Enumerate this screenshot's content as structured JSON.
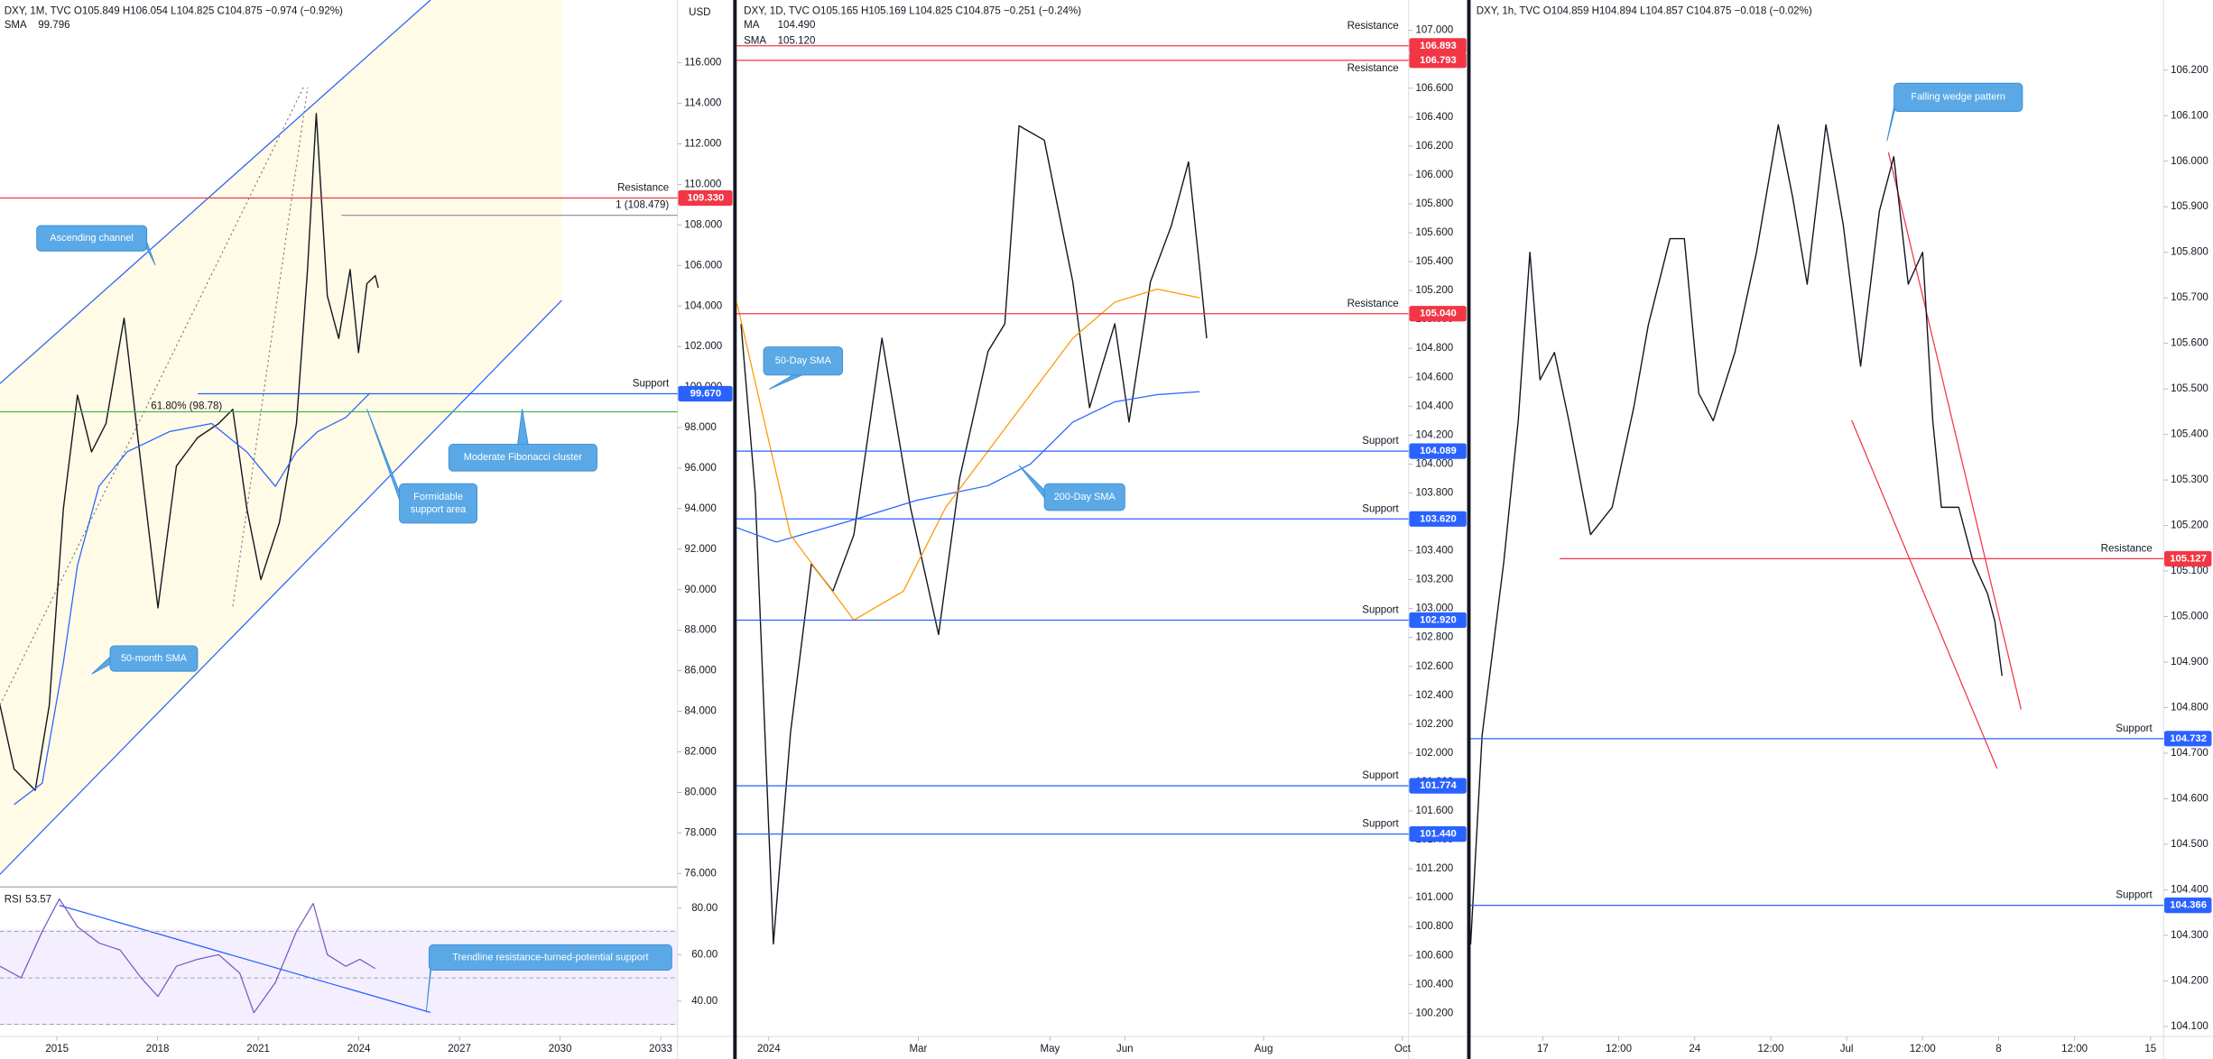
{
  "chart_data": [
    {
      "type": "line",
      "header": "DXY, 1M, TVC  O105.849  H106.054  L104.825  C104.875  −0.974 (−0.92%)",
      "currency": "USD",
      "xlim": [
        2013.3,
        2033.5
      ],
      "xticks": [
        2015,
        2018,
        2021,
        2024,
        2027,
        2030,
        2033
      ],
      "ylim": [
        75.4,
        119.1
      ],
      "yticks": [
        {
          "value": 76,
          "label": "76.000"
        },
        {
          "value": 78,
          "label": "78.000"
        },
        {
          "value": 80,
          "label": "80.000"
        },
        {
          "value": 82,
          "label": "82.000"
        },
        {
          "value": 84,
          "label": "84.000"
        },
        {
          "value": 86,
          "label": "86.000"
        },
        {
          "value": 88,
          "label": "88.000"
        },
        {
          "value": 90,
          "label": "90.000"
        },
        {
          "value": 92,
          "label": "92.000"
        },
        {
          "value": 94,
          "label": "94.000"
        },
        {
          "value": 96,
          "label": "96.000"
        },
        {
          "value": 98,
          "label": "98.000"
        },
        {
          "value": 100,
          "label": "100.000"
        },
        {
          "value": 102,
          "label": "102.000"
        },
        {
          "value": 104,
          "label": "104.000"
        },
        {
          "value": 106,
          "label": "106.000"
        },
        {
          "value": 108,
          "label": "108.000"
        },
        {
          "value": 110,
          "label": "110.000"
        },
        {
          "value": 112,
          "label": "112.000"
        },
        {
          "value": 114,
          "label": "114.000"
        },
        {
          "value": 116,
          "label": "116.000"
        }
      ],
      "series": [
        {
          "color": "#131722",
          "x": [
            2013.3,
            2013.72,
            2014.35,
            2014.77,
            2015.19,
            2015.61,
            2016.03,
            2016.46,
            2017.0,
            2017.51,
            2018.01,
            2018.56,
            2019.19,
            2019.82,
            2020.24,
            2020.66,
            2021.08,
            2021.63,
            2022.14,
            2022.47,
            2022.73,
            2023.06,
            2023.4,
            2023.74,
            2023.99,
            2024.24,
            2024.49,
            2024.58
          ],
          "values": [
            84.3,
            81.15,
            80.1,
            84.3,
            94.0,
            99.6,
            96.8,
            98.2,
            103.4,
            96.1,
            89.1,
            96.1,
            97.5,
            98.2,
            98.9,
            94.0,
            90.5,
            93.3,
            98.2,
            105.8,
            113.5,
            104.5,
            102.4,
            105.8,
            101.7,
            105.1,
            105.5,
            104.9
          ]
        },
        {
          "name": "SMA",
          "last": "99.796",
          "color": "#2962ff",
          "x": [
            2013.72,
            2014.56,
            2015.19,
            2015.61,
            2016.25,
            2017.09,
            2018.35,
            2019.61,
            2020.66,
            2021.51,
            2022.14,
            2022.77,
            2023.61,
            2024.33
          ],
          "values": [
            79.4,
            80.45,
            86.4,
            91.2,
            95.1,
            96.8,
            97.8,
            98.2,
            96.8,
            95.1,
            96.8,
            97.8,
            98.5,
            99.7
          ]
        }
      ],
      "levels": [
        {
          "name": "Resistance",
          "value": 109.33,
          "label": "109.330",
          "color": "#f23645"
        },
        {
          "name": "1 (108.479)",
          "value": 108.479,
          "color": "#9598a1"
        },
        {
          "name": "Support",
          "value": 99.67,
          "label": "99.670",
          "color": "#2962ff"
        },
        {
          "name": "61.80% (98.78)",
          "value": 98.78,
          "color": "#4caf50"
        }
      ],
      "annotations": [
        {
          "lines": [
            "Ascending channel"
          ]
        },
        {
          "lines": [
            "Moderate Fibonacci cluster"
          ]
        },
        {
          "lines": [
            "Formidable",
            "support area"
          ]
        },
        {
          "lines": [
            "50-month SMA"
          ]
        },
        {
          "lines": [
            "Trendline resistance-turned-potential support"
          ]
        }
      ],
      "rsi": {
        "name": "RSI",
        "last": "53.57",
        "color": "#7e57c2",
        "ylim": [
          24.8,
          87.3
        ],
        "yticks": [
          {
            "value": 40,
            "label": "40.00"
          },
          {
            "value": 60,
            "label": "60.00"
          },
          {
            "value": 80,
            "label": "80.00"
          }
        ],
        "bands": [
          30,
          50,
          70
        ],
        "x": [
          2013.3,
          2013.93,
          2014.56,
          2015.07,
          2015.61,
          2016.25,
          2016.88,
          2017.51,
          2018.01,
          2018.56,
          2019.19,
          2019.82,
          2020.45,
          2020.87,
          2021.51,
          2022.14,
          2022.64,
          2023.06,
          2023.61,
          2024.03,
          2024.49
        ],
        "values": [
          55,
          50,
          70,
          84,
          72,
          65,
          62,
          50,
          42,
          55,
          58,
          60,
          52,
          35,
          48,
          70,
          82,
          60,
          55,
          58,
          54
        ]
      }
    },
    {
      "type": "line",
      "header": "DXY, 1D, TVC  O105.165  H105.169  L104.825  C104.875  −0.251 (−0.24%)",
      "xlim": [
        -9,
        179.7
      ],
      "xticks": [
        {
          "value": 0,
          "label": "2024"
        },
        {
          "value": 42,
          "label": "Mar"
        },
        {
          "value": 79,
          "label": "May"
        },
        {
          "value": 100,
          "label": "Jun"
        },
        {
          "value": 139,
          "label": "Aug"
        },
        {
          "value": 178,
          "label": "Oct"
        }
      ],
      "ylim": [
        100.04,
        107.21
      ],
      "yticks": [
        {
          "value": 100.2,
          "label": "100.200"
        },
        {
          "value": 100.4,
          "label": "100.400"
        },
        {
          "value": 100.6,
          "label": "100.600"
        },
        {
          "value": 100.8,
          "label": "100.800"
        },
        {
          "value": 101.0,
          "label": "101.000"
        },
        {
          "value": 101.2,
          "label": "101.200"
        },
        {
          "value": 101.4,
          "label": "101.400"
        },
        {
          "value": 101.6,
          "label": "101.600"
        },
        {
          "value": 101.8,
          "label": "101.800"
        },
        {
          "value": 102.0,
          "label": "102.000"
        },
        {
          "value": 102.2,
          "label": "102.200"
        },
        {
          "value": 102.4,
          "label": "102.400"
        },
        {
          "value": 102.6,
          "label": "102.600"
        },
        {
          "value": 102.8,
          "label": "102.800"
        },
        {
          "value": 103.0,
          "label": "103.000"
        },
        {
          "value": 103.2,
          "label": "103.200"
        },
        {
          "value": 103.4,
          "label": "103.400"
        },
        {
          "value": 103.6,
          "label": "103.600"
        },
        {
          "value": 103.8,
          "label": "103.800"
        },
        {
          "value": 104.0,
          "label": "104.000"
        },
        {
          "value": 104.2,
          "label": "104.200"
        },
        {
          "value": 104.4,
          "label": "104.400"
        },
        {
          "value": 104.6,
          "label": "104.600"
        },
        {
          "value": 104.8,
          "label": "104.800"
        },
        {
          "value": 105.0,
          "label": "105.000"
        },
        {
          "value": 105.2,
          "label": "105.200"
        },
        {
          "value": 105.4,
          "label": "105.400"
        },
        {
          "value": 105.6,
          "label": "105.600"
        },
        {
          "value": 105.8,
          "label": "105.800"
        },
        {
          "value": 106.0,
          "label": "106.000"
        },
        {
          "value": 106.2,
          "label": "106.200"
        },
        {
          "value": 106.4,
          "label": "106.400"
        },
        {
          "value": 106.6,
          "label": "106.600"
        },
        {
          "value": 106.8,
          "label": "106.800"
        },
        {
          "value": 107.0,
          "label": "107.000"
        }
      ],
      "series": [
        {
          "color": "#131722",
          "x": [
            -7.8,
            -3.8,
            1.3,
            6.1,
            12.0,
            18.0,
            23.9,
            31.8,
            39.8,
            47.7,
            53.6,
            61.6,
            66.3,
            70.3,
            77.4,
            85.4,
            90.1,
            97.2,
            101.2,
            107.2,
            113.1,
            117.9,
            121.0,
            123.0
          ],
          "values": [
            104.97,
            103.8,
            100.68,
            102.14,
            103.31,
            103.12,
            103.51,
            104.87,
            103.7,
            102.82,
            103.9,
            104.78,
            104.97,
            106.34,
            106.24,
            105.26,
            104.39,
            104.97,
            104.29,
            105.26,
            105.65,
            106.09,
            105.36,
            104.87
          ]
        },
        {
          "name": "MA",
          "last": "104.490",
          "color": "#2962ff",
          "x": [
            -9,
            2.1,
            21.9,
            41.7,
            61.6,
            73.5,
            85.4,
            97.2,
            109.1,
            121.0
          ],
          "values": [
            103.56,
            103.46,
            103.6,
            103.75,
            103.85,
            104.0,
            104.29,
            104.43,
            104.48,
            104.5
          ]
        },
        {
          "name": "SMA",
          "last": "105.120",
          "color": "#ff9800",
          "x": [
            -9,
            6.1,
            23.9,
            37.8,
            49.7,
            61.6,
            73.5,
            85.4,
            97.2,
            109.1,
            121.0
          ],
          "values": [
            105.12,
            103.51,
            102.92,
            103.12,
            103.7,
            104.09,
            104.48,
            104.87,
            105.12,
            105.21,
            105.15
          ]
        }
      ],
      "levels": [
        {
          "name": "Resistance",
          "value": 106.893,
          "label": "106.893",
          "color": "#f23645"
        },
        {
          "name": "Resistance",
          "value": 106.793,
          "label": "106.793",
          "color": "#f23645"
        },
        {
          "name": "Resistance",
          "value": 105.04,
          "label": "105.040",
          "color": "#f23645"
        },
        {
          "name": "Support",
          "value": 104.089,
          "label": "104.089",
          "color": "#2962ff"
        },
        {
          "name": "Support",
          "value": 103.62,
          "label": "103.620",
          "color": "#2962ff"
        },
        {
          "name": "Support",
          "value": 102.92,
          "label": "102.920",
          "color": "#2962ff"
        },
        {
          "name": "Support",
          "value": 101.774,
          "label": "101.774",
          "color": "#2962ff"
        },
        {
          "name": "Support",
          "value": 101.44,
          "label": "101.440",
          "color": "#2962ff"
        }
      ],
      "annotations": [
        {
          "lines": [
            "50-Day SMA"
          ]
        },
        {
          "lines": [
            "200-Day SMA"
          ]
        }
      ]
    },
    {
      "type": "line",
      "header": "DXY, 1h, TVC  O104.859  H104.894  L104.857  C104.875  −0.018 (−0.02%)",
      "xlim": [
        3,
        550.3
      ],
      "xticks": [
        {
          "value": 60,
          "label": "17"
        },
        {
          "value": 120,
          "label": "12:00"
        },
        {
          "value": 180,
          "label": "24"
        },
        {
          "value": 240,
          "label": "12:00"
        },
        {
          "value": 300,
          "label": "Jul"
        },
        {
          "value": 360,
          "label": "12:00"
        },
        {
          "value": 420,
          "label": "8"
        },
        {
          "value": 480,
          "label": "12:00"
        },
        {
          "value": 540,
          "label": "15"
        }
      ],
      "ylim": [
        104.078,
        106.354
      ],
      "yticks": [
        {
          "value": 104.1,
          "label": "104.100"
        },
        {
          "value": 104.2,
          "label": "104.200"
        },
        {
          "value": 104.3,
          "label": "104.300"
        },
        {
          "value": 104.4,
          "label": "104.400"
        },
        {
          "value": 104.5,
          "label": "104.500"
        },
        {
          "value": 104.6,
          "label": "104.600"
        },
        {
          "value": 104.7,
          "label": "104.700"
        },
        {
          "value": 104.8,
          "label": "104.800"
        },
        {
          "value": 104.9,
          "label": "104.900"
        },
        {
          "value": 105.0,
          "label": "105.000"
        },
        {
          "value": 105.1,
          "label": "105.100"
        },
        {
          "value": 105.2,
          "label": "105.200"
        },
        {
          "value": 105.3,
          "label": "105.300"
        },
        {
          "value": 105.4,
          "label": "105.400"
        },
        {
          "value": 105.5,
          "label": "105.500"
        },
        {
          "value": 105.6,
          "label": "105.600"
        },
        {
          "value": 105.7,
          "label": "105.700"
        },
        {
          "value": 105.8,
          "label": "105.800"
        },
        {
          "value": 105.9,
          "label": "105.900"
        },
        {
          "value": 106.0,
          "label": "106.000"
        },
        {
          "value": 106.1,
          "label": "106.100"
        },
        {
          "value": 106.2,
          "label": "106.200"
        }
      ],
      "series": [
        {
          "color": "#131722",
          "x": [
            3,
            12.1,
            29.2,
            40.6,
            49.8,
            57.8,
            69.2,
            80.6,
            97.7,
            114.8,
            131.9,
            143.3,
            160.4,
            171.8,
            183.2,
            194.6,
            211.7,
            228.8,
            246.0,
            257.4,
            268.8,
            283.6,
            297.3,
            311.0,
            325.8,
            337.2,
            348.6,
            360.0,
            368.0,
            374.8,
            388.5,
            399.9,
            411.3,
            417.0,
            422.7
          ],
          "values": [
            104.28,
            104.74,
            105.12,
            105.43,
            105.8,
            105.52,
            105.58,
            105.43,
            105.18,
            105.24,
            105.46,
            105.64,
            105.83,
            105.83,
            105.49,
            105.43,
            105.58,
            105.8,
            106.08,
            105.92,
            105.73,
            106.08,
            105.86,
            105.55,
            105.89,
            106.01,
            105.73,
            105.8,
            105.43,
            105.24,
            105.24,
            105.12,
            105.05,
            104.99,
            104.87
          ]
        }
      ],
      "levels": [
        {
          "name": "Resistance",
          "value": 105.127,
          "label": "105.127",
          "color": "#f23645"
        },
        {
          "name": "Support",
          "value": 104.732,
          "label": "104.732",
          "color": "#2962ff"
        },
        {
          "name": "Support",
          "value": 104.366,
          "label": "104.366",
          "color": "#2962ff"
        }
      ],
      "annotations": [
        {
          "lines": [
            "Falling wedge pattern"
          ]
        }
      ]
    }
  ]
}
